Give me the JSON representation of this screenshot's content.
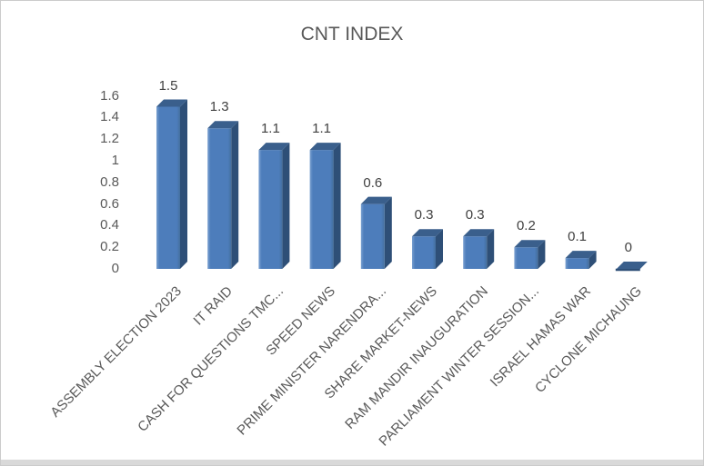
{
  "chart_data": {
    "type": "bar",
    "title": "CNT INDEX",
    "categories": [
      "ASSEMBLY ELECTION 2023",
      "IT RAID",
      "CASH FOR QUESTIONS TMC...",
      "SPEED NEWS",
      "PRIME MINISTER NARENDRA...",
      "SHARE MARKET-NEWS",
      "RAM MANDIR INAUGURATION",
      "PARLIAMENT WINTER SESSION...",
      "ISRAEL HAMAS WAR",
      "CYCLONE MICHAUNG"
    ],
    "values": [
      1.5,
      1.3,
      1.1,
      1.1,
      0.6,
      0.3,
      0.3,
      0.2,
      0.1,
      0
    ],
    "data_labels": [
      "1.5",
      "1.3",
      "1.1",
      "1.1",
      "0.6",
      "0.3",
      "0.3",
      "0.2",
      "0.1",
      "0"
    ],
    "xlabel": "",
    "ylabel": "",
    "ylim": [
      0,
      1.6
    ],
    "y_ticks": [
      "0",
      "0.2",
      "0.4",
      "0.6",
      "0.8",
      "1",
      "1.2",
      "1.4",
      "1.6"
    ],
    "y_tick_values": [
      0,
      0.2,
      0.4,
      0.6,
      0.8,
      1,
      1.2,
      1.4,
      1.6
    ],
    "grid": false,
    "legend": false,
    "bar_style": "3d-extruded-column",
    "colors": {
      "bar_front": "#4d7dbb",
      "bar_front_highlight": "#79a0d0",
      "bar_side": "#2e4f77",
      "bar_top": "#3a5f8c",
      "title_text": "#595959",
      "axis_text": "#595959",
      "data_label_text": "#404040",
      "frame_border": "#cbcbcb",
      "bottom_strip": "#d9d9d9"
    }
  }
}
